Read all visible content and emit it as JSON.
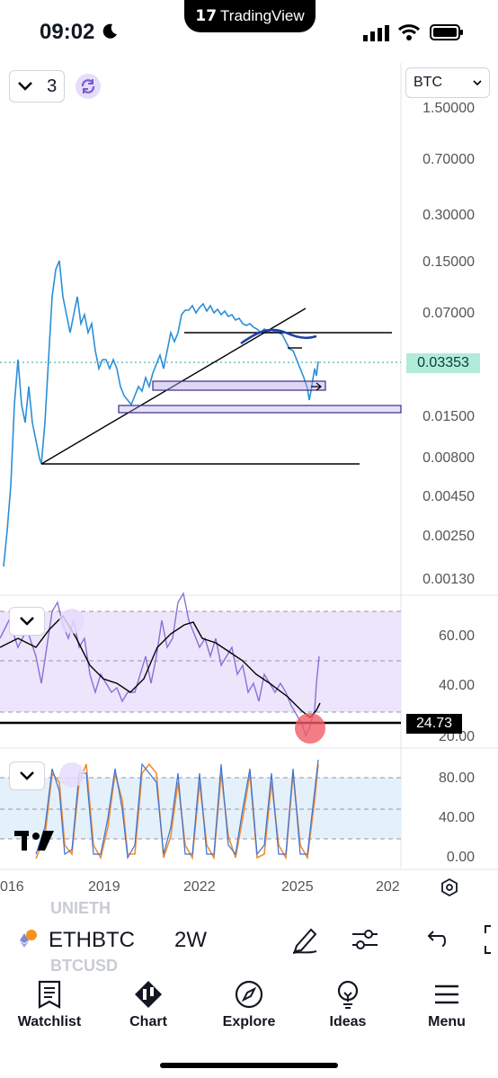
{
  "status": {
    "time": "09:02",
    "app_name": "TradingView"
  },
  "chart": {
    "indicator_count": "3",
    "currency": "BTC",
    "price_axis": [
      "1.50000",
      "0.70000",
      "0.30000",
      "0.15000",
      "0.07000",
      "0.01500",
      "0.00800",
      "0.00450",
      "0.00250",
      "0.00130"
    ],
    "last_price": "0.03353",
    "rsi_axis": [
      "60.00",
      "40.00",
      "20.00"
    ],
    "rsi_marker": "24.73",
    "stoch_axis": [
      "80.00",
      "40.00",
      "0.00"
    ],
    "time_axis": [
      "016",
      "2019",
      "2022",
      "2025",
      "202"
    ]
  },
  "symbol_bar": {
    "ghost_above": "UNIETH",
    "symbol": "ETHBTC",
    "interval": "2W",
    "ghost_below": "BTCUSD"
  },
  "tabs": [
    {
      "label": "Watchlist",
      "icon": "watchlist-icon"
    },
    {
      "label": "Chart",
      "icon": "chart-icon"
    },
    {
      "label": "Explore",
      "icon": "compass-icon"
    },
    {
      "label": "Ideas",
      "icon": "lightbulb-icon"
    },
    {
      "label": "Menu",
      "icon": "menu-icon"
    }
  ]
}
